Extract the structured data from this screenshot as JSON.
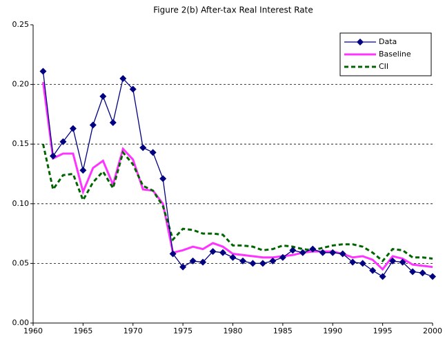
{
  "chart_data": {
    "type": "line",
    "title": "Figure 2(b) After-tax Real Interest Rate",
    "x": [
      1961,
      1962,
      1963,
      1964,
      1965,
      1966,
      1967,
      1968,
      1969,
      1970,
      1971,
      1972,
      1973,
      1974,
      1975,
      1976,
      1977,
      1978,
      1979,
      1980,
      1981,
      1982,
      1983,
      1984,
      1985,
      1986,
      1987,
      1988,
      1989,
      1990,
      1991,
      1992,
      1993,
      1994,
      1995,
      1996,
      1997,
      1998,
      1999,
      2000
    ],
    "series": [
      {
        "name": "Data",
        "color": "#000080",
        "marker": "diamond",
        "values": [
          0.211,
          0.14,
          0.152,
          0.163,
          0.128,
          0.166,
          0.19,
          0.168,
          0.205,
          0.196,
          0.147,
          0.143,
          0.121,
          0.058,
          0.047,
          0.052,
          0.051,
          0.06,
          0.059,
          0.055,
          0.052,
          0.05,
          0.05,
          0.052,
          0.055,
          0.061,
          0.059,
          0.062,
          0.059,
          0.059,
          0.058,
          0.051,
          0.05,
          0.044,
          0.039,
          0.052,
          0.051,
          0.043,
          0.042,
          0.039
        ]
      },
      {
        "name": "Baseline",
        "color": "#ff33ff",
        "values": [
          0.202,
          0.138,
          0.142,
          0.142,
          0.11,
          0.13,
          0.136,
          0.116,
          0.146,
          0.137,
          0.112,
          0.111,
          0.1,
          0.059,
          0.061,
          0.064,
          0.062,
          0.067,
          0.064,
          0.058,
          0.057,
          0.056,
          0.055,
          0.055,
          0.056,
          0.057,
          0.059,
          0.06,
          0.06,
          0.06,
          0.058,
          0.055,
          0.056,
          0.053,
          0.045,
          0.056,
          0.054,
          0.049,
          0.048,
          0.047
        ]
      },
      {
        "name": "CII",
        "color": "#006400",
        "dash": true,
        "values": [
          0.15,
          0.112,
          0.124,
          0.125,
          0.103,
          0.118,
          0.127,
          0.113,
          0.143,
          0.133,
          0.115,
          0.111,
          0.098,
          0.07,
          0.079,
          0.078,
          0.075,
          0.075,
          0.074,
          0.065,
          0.065,
          0.064,
          0.061,
          0.062,
          0.065,
          0.064,
          0.062,
          0.061,
          0.063,
          0.065,
          0.066,
          0.066,
          0.064,
          0.059,
          0.052,
          0.062,
          0.061,
          0.055,
          0.055,
          0.054
        ]
      }
    ],
    "xlim": [
      1960,
      2000
    ],
    "xticks": [
      1960,
      1965,
      1970,
      1975,
      1980,
      1985,
      1990,
      1995,
      2000
    ],
    "ylim": [
      0,
      0.25
    ],
    "yticks": [
      {
        "value": 0,
        "label": "0.00"
      },
      {
        "value": 0.05,
        "label": "0.05"
      },
      {
        "value": 0.1,
        "label": "0.10"
      },
      {
        "value": 0.15,
        "label": "0.15"
      },
      {
        "value": 0.2,
        "label": "0.20"
      },
      {
        "value": 0.25,
        "label": "0.25"
      }
    ],
    "grid": true,
    "legend": "upper-right"
  }
}
